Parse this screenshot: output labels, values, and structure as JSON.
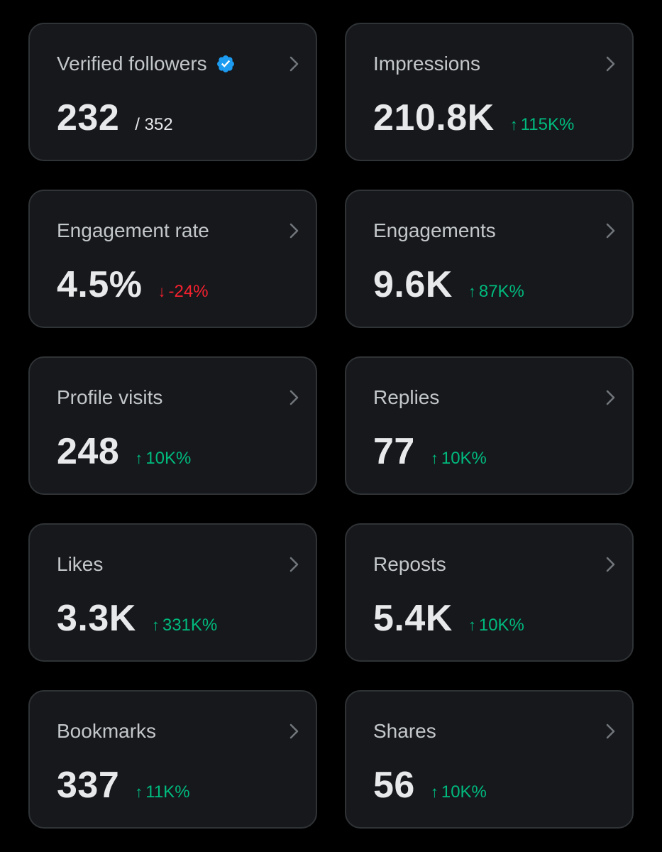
{
  "colors": {
    "background": "#000000",
    "card": "#16181c",
    "card_border": "#2f3336",
    "positive": "#00ba7c",
    "negative": "#f4212e",
    "verified": "#1d9bf0"
  },
  "cards": [
    {
      "title": "Verified followers",
      "value": "232",
      "secondary": "/ 352",
      "verified_icon": "verified-badge-icon"
    },
    {
      "title": "Impressions",
      "value": "210.8K",
      "change": "115K%",
      "direction": "up"
    },
    {
      "title": "Engagement rate",
      "value": "4.5%",
      "change": "-24%",
      "direction": "down"
    },
    {
      "title": "Engagements",
      "value": "9.6K",
      "change": "87K%",
      "direction": "up"
    },
    {
      "title": "Profile visits",
      "value": "248",
      "change": "10K%",
      "direction": "up"
    },
    {
      "title": "Replies",
      "value": "77",
      "change": "10K%",
      "direction": "up"
    },
    {
      "title": "Likes",
      "value": "3.3K",
      "change": "331K%",
      "direction": "up"
    },
    {
      "title": "Reposts",
      "value": "5.4K",
      "change": "10K%",
      "direction": "up"
    },
    {
      "title": "Bookmarks",
      "value": "337",
      "change": "11K%",
      "direction": "up"
    },
    {
      "title": "Shares",
      "value": "56",
      "change": "10K%",
      "direction": "up"
    }
  ]
}
